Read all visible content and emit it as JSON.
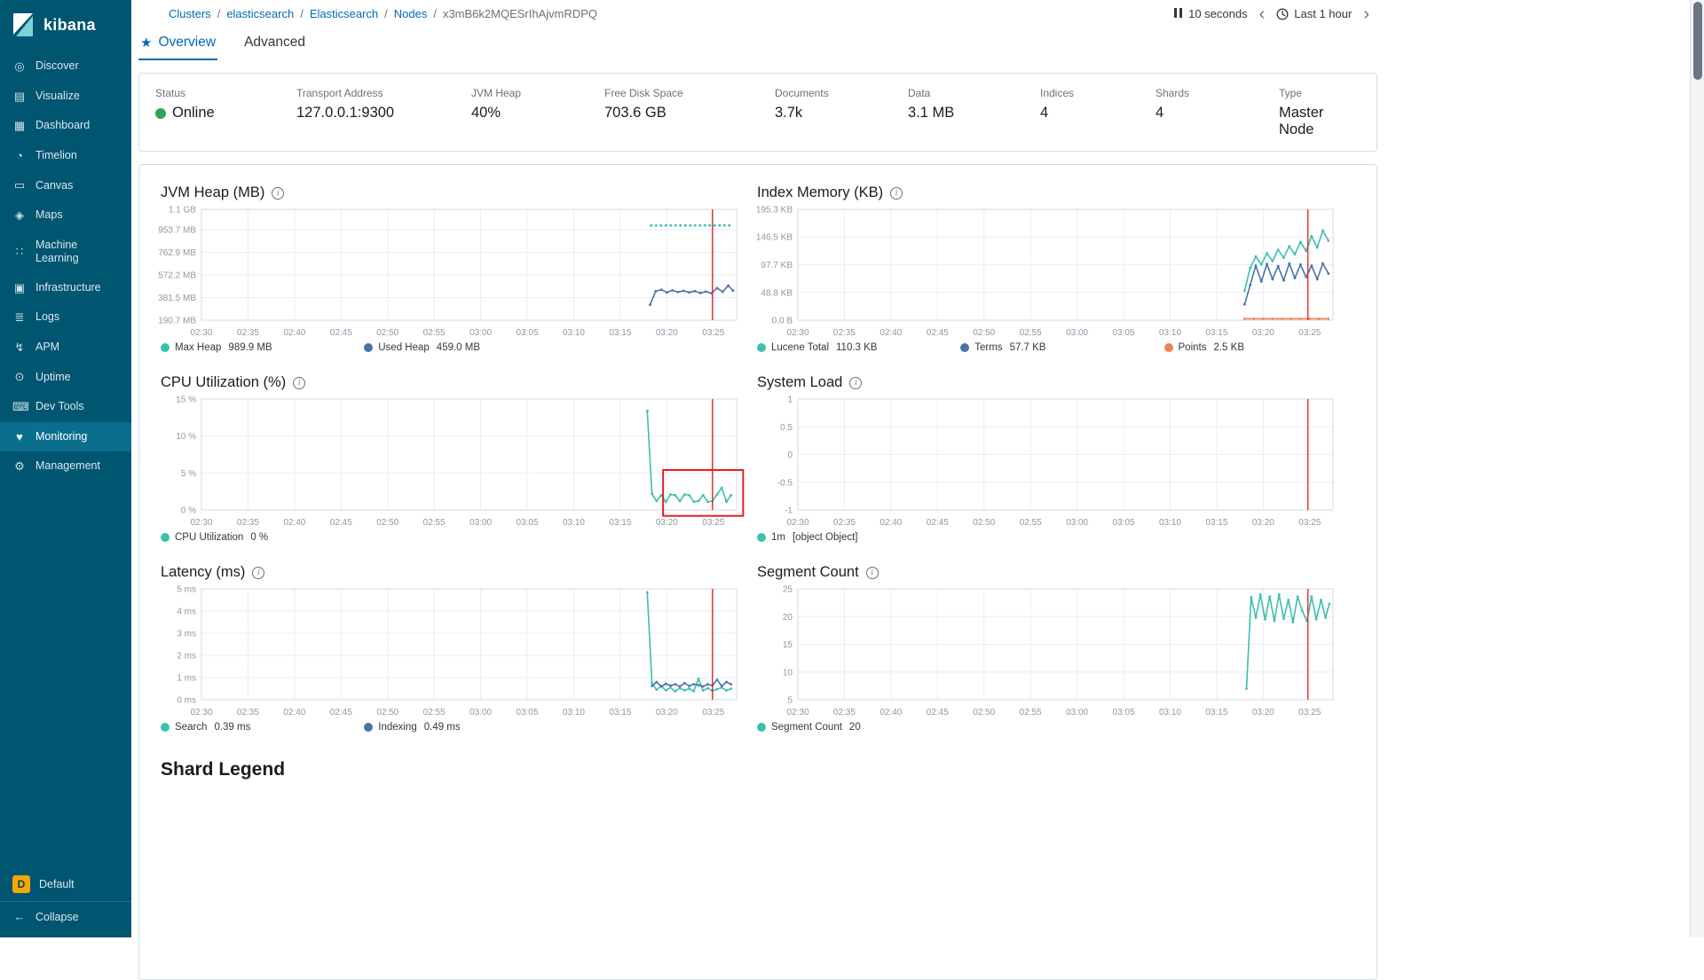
{
  "sidebar": {
    "logo_text": "kibana",
    "selected": "Monitoring",
    "items": [
      {
        "label": "Discover",
        "icon": "discover-icon"
      },
      {
        "label": "Visualize",
        "icon": "visualize-icon"
      },
      {
        "label": "Dashboard",
        "icon": "dashboard-icon"
      },
      {
        "label": "Timelion",
        "icon": "timelion-icon"
      },
      {
        "label": "Canvas",
        "icon": "canvas-icon"
      },
      {
        "label": "Maps",
        "icon": "maps-icon"
      },
      {
        "label": "Machine Learning",
        "icon": "machine-learning-icon"
      },
      {
        "label": "Infrastructure",
        "icon": "infrastructure-icon"
      },
      {
        "label": "Logs",
        "icon": "logs-icon"
      },
      {
        "label": "APM",
        "icon": "apm-icon"
      },
      {
        "label": "Uptime",
        "icon": "uptime-icon"
      },
      {
        "label": "Dev Tools",
        "icon": "dev-tools-icon"
      },
      {
        "label": "Monitoring",
        "icon": "monitoring-icon"
      },
      {
        "label": "Management",
        "icon": "management-icon"
      }
    ],
    "footer": {
      "space_label": "Default",
      "space_initial": "D",
      "collapse_label": "Collapse",
      "collapse_icon": "arrow-left-icon"
    }
  },
  "topbar": {
    "breadcrumbs": [
      {
        "label": "Clusters",
        "link": true
      },
      {
        "label": "elasticsearch",
        "link": true
      },
      {
        "label": "Elasticsearch",
        "link": true
      },
      {
        "label": "Nodes",
        "link": true
      },
      {
        "label": "x3mB6k2MQESrIhAjvmRDPQ",
        "link": false
      }
    ],
    "refresh_interval": "10 seconds",
    "time_range": "Last 1 hour"
  },
  "tabs": [
    {
      "label": "Overview",
      "active": true
    },
    {
      "label": "Advanced",
      "active": false
    }
  ],
  "stats": [
    {
      "label": "Status",
      "value": "Online",
      "dot": "#2EA44F"
    },
    {
      "label": "Transport Address",
      "value": "127.0.0.1:9300"
    },
    {
      "label": "JVM Heap",
      "value": "40%"
    },
    {
      "label": "Free Disk Space",
      "value": "703.6 GB"
    },
    {
      "label": "Documents",
      "value": "3.7k"
    },
    {
      "label": "Data",
      "value": "3.1 MB"
    },
    {
      "label": "Indices",
      "value": "4"
    },
    {
      "label": "Shards",
      "value": "4"
    },
    {
      "label": "Type",
      "value": "Master Node"
    }
  ],
  "shard_legend_title": "Shard Legend",
  "colors": {
    "accent": "#006BB4",
    "sidebar": "#005571",
    "teal": "#3EBEB0",
    "blue": "#4A72A8",
    "orange": "#EE8455",
    "annotation_red": "#E02020",
    "status_green": "#2EA44F",
    "grid": "#E9EDF3",
    "plot_border": "#D3DAE6",
    "tick_text": "#8d98a5"
  },
  "chart_data": [
    {
      "type": "line",
      "title": "JVM Heap (MB)",
      "x_ticks": [
        "02:30",
        "02:35",
        "02:40",
        "02:45",
        "02:50",
        "02:55",
        "03:00",
        "03:05",
        "03:10",
        "03:15",
        "03:20",
        "03:25"
      ],
      "x_domain": [
        0,
        57.5
      ],
      "x_tick_minutes": [
        0,
        5,
        10,
        15,
        20,
        25,
        30,
        35,
        40,
        45,
        50,
        55
      ],
      "y_domain": [
        190.7,
        1126.4
      ],
      "y_ticks": [
        {
          "label": "1.1 GB",
          "value": 1126.4
        },
        {
          "label": "953.7 MB",
          "value": 953.7
        },
        {
          "label": "762.9 MB",
          "value": 762.9
        },
        {
          "label": "572.2 MB",
          "value": 572.2
        },
        {
          "label": "381.5 MB",
          "value": 381.5
        },
        {
          "label": "190.7 MB",
          "value": 190.7
        }
      ],
      "annotation_line_x": 54.9,
      "series": [
        {
          "name": "Max Heap",
          "legend_value": "989.9 MB",
          "color": "#3EBEB0",
          "style": "dotted",
          "points": [
            [
              48.3,
              989.9
            ],
            [
              57.2,
              989.9
            ]
          ]
        },
        {
          "name": "Used Heap",
          "legend_value": "459.0 MB",
          "color": "#4A72A8",
          "points": [
            [
              48.2,
              320
            ],
            [
              48.8,
              435
            ],
            [
              49.4,
              448
            ],
            [
              50,
              425
            ],
            [
              50.6,
              442
            ],
            [
              51.2,
              428
            ],
            [
              51.8,
              438
            ],
            [
              52.4,
              425
            ],
            [
              53,
              436
            ],
            [
              53.6,
              420
            ],
            [
              54.2,
              432
            ],
            [
              54.8,
              418
            ],
            [
              55.4,
              462
            ],
            [
              56,
              430
            ],
            [
              56.6,
              482
            ],
            [
              57.1,
              440
            ]
          ]
        }
      ]
    },
    {
      "type": "line",
      "title": "Index Memory (KB)",
      "x_ticks": [
        "02:30",
        "02:35",
        "02:40",
        "02:45",
        "02:50",
        "02:55",
        "03:00",
        "03:05",
        "03:10",
        "03:15",
        "03:20",
        "03:25"
      ],
      "x_domain": [
        0,
        57.5
      ],
      "x_tick_minutes": [
        0,
        5,
        10,
        15,
        20,
        25,
        30,
        35,
        40,
        45,
        50,
        55
      ],
      "y_domain": [
        0,
        195.3
      ],
      "y_ticks": [
        {
          "label": "195.3 KB",
          "value": 195.3
        },
        {
          "label": "146.5 KB",
          "value": 146.5
        },
        {
          "label": "97.7 KB",
          "value": 97.7
        },
        {
          "label": "48.8 KB",
          "value": 48.8
        },
        {
          "label": "0.0 B",
          "value": 0
        }
      ],
      "annotation_line_x": 54.8,
      "series": [
        {
          "name": "Lucene Total",
          "legend_value": "110.3 KB",
          "color": "#3EBEB0",
          "points": [
            [
              48,
              52
            ],
            [
              48.6,
              92
            ],
            [
              49.2,
              112
            ],
            [
              49.8,
              98
            ],
            [
              50.4,
              118
            ],
            [
              51,
              104
            ],
            [
              51.6,
              124
            ],
            [
              52.2,
              110
            ],
            [
              52.8,
              130
            ],
            [
              53.4,
              116
            ],
            [
              54,
              138
            ],
            [
              54.6,
              122
            ],
            [
              55.2,
              148
            ],
            [
              55.8,
              128
            ],
            [
              56.4,
              158
            ],
            [
              57,
              140
            ]
          ]
        },
        {
          "name": "Terms",
          "legend_value": "57.7 KB",
          "color": "#4A72A8",
          "points": [
            [
              48,
              28
            ],
            [
              48.6,
              62
            ],
            [
              49.2,
              96
            ],
            [
              49.8,
              68
            ],
            [
              50.4,
              99
            ],
            [
              51,
              72
            ],
            [
              51.6,
              95
            ],
            [
              52.2,
              70
            ],
            [
              52.8,
              100
            ],
            [
              53.4,
              74
            ],
            [
              54,
              98
            ],
            [
              54.6,
              76
            ],
            [
              55.2,
              96
            ],
            [
              55.8,
              72
            ],
            [
              56.4,
              100
            ],
            [
              57,
              82
            ]
          ]
        },
        {
          "name": "Points",
          "legend_value": "2.5 KB",
          "color": "#EE8455",
          "points": [
            [
              48,
              2.5
            ],
            [
              49,
              2.5
            ],
            [
              50,
              2.5
            ],
            [
              51,
              2.5
            ],
            [
              52,
              2.5
            ],
            [
              53,
              2.5
            ],
            [
              54,
              2.5
            ],
            [
              55,
              2.5
            ],
            [
              56,
              2.5
            ],
            [
              57,
              2.5
            ]
          ]
        }
      ]
    },
    {
      "type": "line",
      "title": "CPU Utilization (%)",
      "x_ticks": [
        "02:30",
        "02:35",
        "02:40",
        "02:45",
        "02:50",
        "02:55",
        "03:00",
        "03:05",
        "03:10",
        "03:15",
        "03:20",
        "03:25"
      ],
      "x_domain": [
        0,
        57.5
      ],
      "x_tick_minutes": [
        0,
        5,
        10,
        15,
        20,
        25,
        30,
        35,
        40,
        45,
        50,
        55
      ],
      "y_domain": [
        0,
        15
      ],
      "y_ticks": [
        {
          "label": "15 %",
          "value": 15
        },
        {
          "label": "10 %",
          "value": 10
        },
        {
          "label": "5 %",
          "value": 5
        },
        {
          "label": "0 %",
          "value": 0
        }
      ],
      "annotation_line_x": 54.9,
      "annotation_box": {
        "x1": 49.6,
        "x2": 58.2,
        "y1": -0.8,
        "y2": 5.4
      },
      "series": [
        {
          "name": "CPU Utilization",
          "legend_value": "0 %",
          "color": "#3EBEB0",
          "points": [
            [
              47.9,
              13.4
            ],
            [
              48.4,
              2.2
            ],
            [
              48.9,
              1.2
            ],
            [
              49.4,
              2.0
            ],
            [
              49.9,
              1.1
            ],
            [
              50.4,
              2.1
            ],
            [
              50.9,
              2.0
            ],
            [
              51.4,
              1.2
            ],
            [
              51.9,
              2.1
            ],
            [
              52.4,
              2.0
            ],
            [
              52.9,
              1.1
            ],
            [
              53.4,
              1.2
            ],
            [
              53.9,
              2.0
            ],
            [
              54.4,
              1.1
            ],
            [
              54.9,
              1.2
            ],
            [
              55.4,
              2.1
            ],
            [
              55.9,
              3.0
            ],
            [
              56.4,
              1.1
            ],
            [
              56.9,
              2.0
            ]
          ]
        }
      ]
    },
    {
      "type": "line",
      "title": "System Load",
      "x_ticks": [
        "02:30",
        "02:35",
        "02:40",
        "02:45",
        "02:50",
        "02:55",
        "03:00",
        "03:05",
        "03:10",
        "03:15",
        "03:20",
        "03:25"
      ],
      "x_domain": [
        0,
        57.5
      ],
      "x_tick_minutes": [
        0,
        5,
        10,
        15,
        20,
        25,
        30,
        35,
        40,
        45,
        50,
        55
      ],
      "y_domain": [
        -1,
        1
      ],
      "y_ticks": [
        {
          "label": "1",
          "value": 1
        },
        {
          "label": "0.5",
          "value": 0.5
        },
        {
          "label": "0",
          "value": 0
        },
        {
          "label": "-0.5",
          "value": -0.5
        },
        {
          "label": "-1",
          "value": -1
        }
      ],
      "annotation_line_x": 54.8,
      "series": [
        {
          "name": "1m",
          "legend_value": "[object Object]",
          "color": "#3EBEB0",
          "points": []
        }
      ]
    },
    {
      "type": "line",
      "title": "Latency (ms)",
      "x_ticks": [
        "02:30",
        "02:35",
        "02:40",
        "02:45",
        "02:50",
        "02:55",
        "03:00",
        "03:05",
        "03:10",
        "03:15",
        "03:20",
        "03:25"
      ],
      "x_domain": [
        0,
        57.5
      ],
      "x_tick_minutes": [
        0,
        5,
        10,
        15,
        20,
        25,
        30,
        35,
        40,
        45,
        50,
        55
      ],
      "y_domain": [
        0,
        5
      ],
      "y_ticks": [
        {
          "label": "5 ms",
          "value": 5
        },
        {
          "label": "4 ms",
          "value": 4
        },
        {
          "label": "3 ms",
          "value": 3
        },
        {
          "label": "2 ms",
          "value": 2
        },
        {
          "label": "1 ms",
          "value": 1
        },
        {
          "label": "0 ms",
          "value": 0
        }
      ],
      "annotation_line_x": 54.9,
      "series": [
        {
          "name": "Search",
          "legend_value": "0.39 ms",
          "color": "#3EBEB0",
          "points": [
            [
              47.9,
              4.85
            ],
            [
              48.4,
              0.75
            ],
            [
              48.9,
              0.45
            ],
            [
              49.4,
              0.62
            ],
            [
              49.9,
              0.42
            ],
            [
              50.4,
              0.55
            ],
            [
              50.9,
              0.38
            ],
            [
              51.4,
              0.52
            ],
            [
              51.9,
              0.42
            ],
            [
              52.4,
              0.5
            ],
            [
              52.9,
              0.38
            ],
            [
              53.4,
              0.95
            ],
            [
              53.9,
              0.42
            ],
            [
              54.4,
              0.52
            ],
            [
              54.9,
              0.4
            ],
            [
              55.4,
              0.48
            ],
            [
              55.9,
              0.55
            ],
            [
              56.4,
              0.42
            ],
            [
              56.9,
              0.5
            ]
          ]
        },
        {
          "name": "Indexing",
          "legend_value": "0.49 ms",
          "color": "#4A72A8",
          "points": [
            [
              48.4,
              0.62
            ],
            [
              48.9,
              0.8
            ],
            [
              49.4,
              0.6
            ],
            [
              49.9,
              0.72
            ],
            [
              50.4,
              0.64
            ],
            [
              50.9,
              0.7
            ],
            [
              51.4,
              0.6
            ],
            [
              51.9,
              0.75
            ],
            [
              52.4,
              0.62
            ],
            [
              52.9,
              0.7
            ],
            [
              53.4,
              0.66
            ],
            [
              53.9,
              0.6
            ],
            [
              54.4,
              0.7
            ],
            [
              54.9,
              0.64
            ],
            [
              55.4,
              0.9
            ],
            [
              55.9,
              0.62
            ],
            [
              56.4,
              0.8
            ],
            [
              56.9,
              0.7
            ]
          ]
        }
      ]
    },
    {
      "type": "line",
      "title": "Segment Count",
      "x_ticks": [
        "02:30",
        "02:35",
        "02:40",
        "02:45",
        "02:50",
        "02:55",
        "03:00",
        "03:05",
        "03:10",
        "03:15",
        "03:20",
        "03:25"
      ],
      "x_domain": [
        0,
        57.5
      ],
      "x_tick_minutes": [
        0,
        5,
        10,
        15,
        20,
        25,
        30,
        35,
        40,
        45,
        50,
        55
      ],
      "y_domain": [
        5,
        25
      ],
      "y_ticks": [
        {
          "label": "25",
          "value": 25
        },
        {
          "label": "20",
          "value": 20
        },
        {
          "label": "15",
          "value": 15
        },
        {
          "label": "10",
          "value": 10
        },
        {
          "label": "5",
          "value": 5
        }
      ],
      "annotation_line_x": 54.8,
      "series": [
        {
          "name": "Segment Count",
          "legend_value": "20",
          "color": "#3EBEB0",
          "points": [
            [
              48.2,
              7
            ],
            [
              48.7,
              23.5
            ],
            [
              49.2,
              19.8
            ],
            [
              49.7,
              24
            ],
            [
              50.2,
              19.5
            ],
            [
              50.7,
              23.6
            ],
            [
              51.2,
              19.2
            ],
            [
              51.7,
              24
            ],
            [
              52.2,
              19.6
            ],
            [
              52.7,
              23
            ],
            [
              53.2,
              19
            ],
            [
              53.7,
              23.6
            ],
            [
              54.2,
              21
            ],
            [
              54.7,
              19.2
            ],
            [
              55.2,
              23.6
            ],
            [
              55.7,
              19.5
            ],
            [
              56.2,
              23
            ],
            [
              56.7,
              19.8
            ],
            [
              57.1,
              22.3
            ]
          ]
        }
      ]
    }
  ]
}
